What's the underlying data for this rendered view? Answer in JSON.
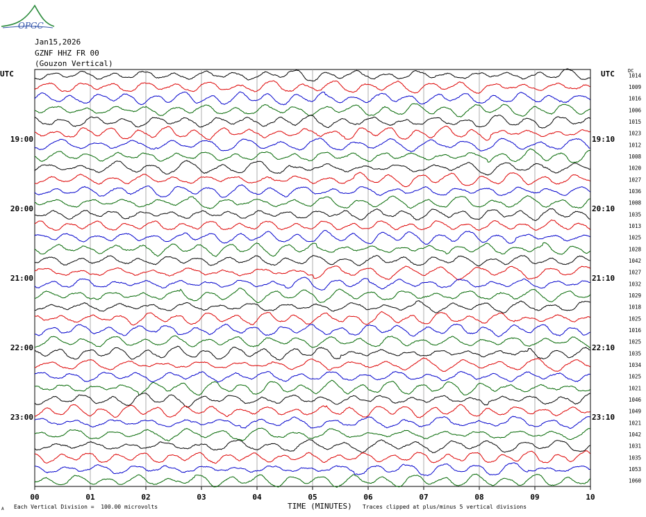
{
  "header": {
    "logo_text": "OPGC",
    "date": "Jan15,2026",
    "station": "GZNF HHZ FR 00",
    "description": "(Gouzon Vertical)"
  },
  "utc_left_label": "UTC",
  "utc_right_label": "UTC",
  "dc_label": "DC",
  "footer": {
    "scale_text": "Each Vertical Division =  100.00 microvolts",
    "time_label": "TIME (MINUTES)",
    "clip_text": "Traces clipped at plus/minus 5 vertical divisions",
    "corner_mark": "A"
  },
  "colors": {
    "black": "#000000",
    "red": "#dd0000",
    "blue": "#0000cc",
    "green": "#006600",
    "grid": "#999999"
  },
  "chart_data": {
    "type": "line",
    "xlabel": "TIME (MINUTES)",
    "x_ticks": [
      "00",
      "01",
      "02",
      "03",
      "04",
      "05",
      "06",
      "07",
      "08",
      "09",
      "10"
    ],
    "xlim": [
      0,
      10
    ],
    "left_time_labels": [
      "19:00",
      "20:00",
      "21:00",
      "22:00",
      "23:00"
    ],
    "right_time_labels": [
      "19:10",
      "20:10",
      "21:10",
      "22:10",
      "23:10"
    ],
    "trace_color_cycle": [
      "black",
      "red",
      "blue",
      "green"
    ],
    "dc_offsets": [
      "1014",
      "1009",
      "1016",
      "1006",
      "1015",
      "1023",
      "1012",
      "1008",
      "1020",
      "1027",
      "1036",
      "1008",
      "1035",
      "1013",
      "1025",
      "1028",
      "1042",
      "1027",
      "1032",
      "1029",
      "1018",
      "1025",
      "1016",
      "1025",
      "1035",
      "1034",
      "1025",
      "1021",
      "1046",
      "1049",
      "1021",
      "1042",
      "1031",
      "1035",
      "1053",
      "1060"
    ],
    "grid": true
  }
}
